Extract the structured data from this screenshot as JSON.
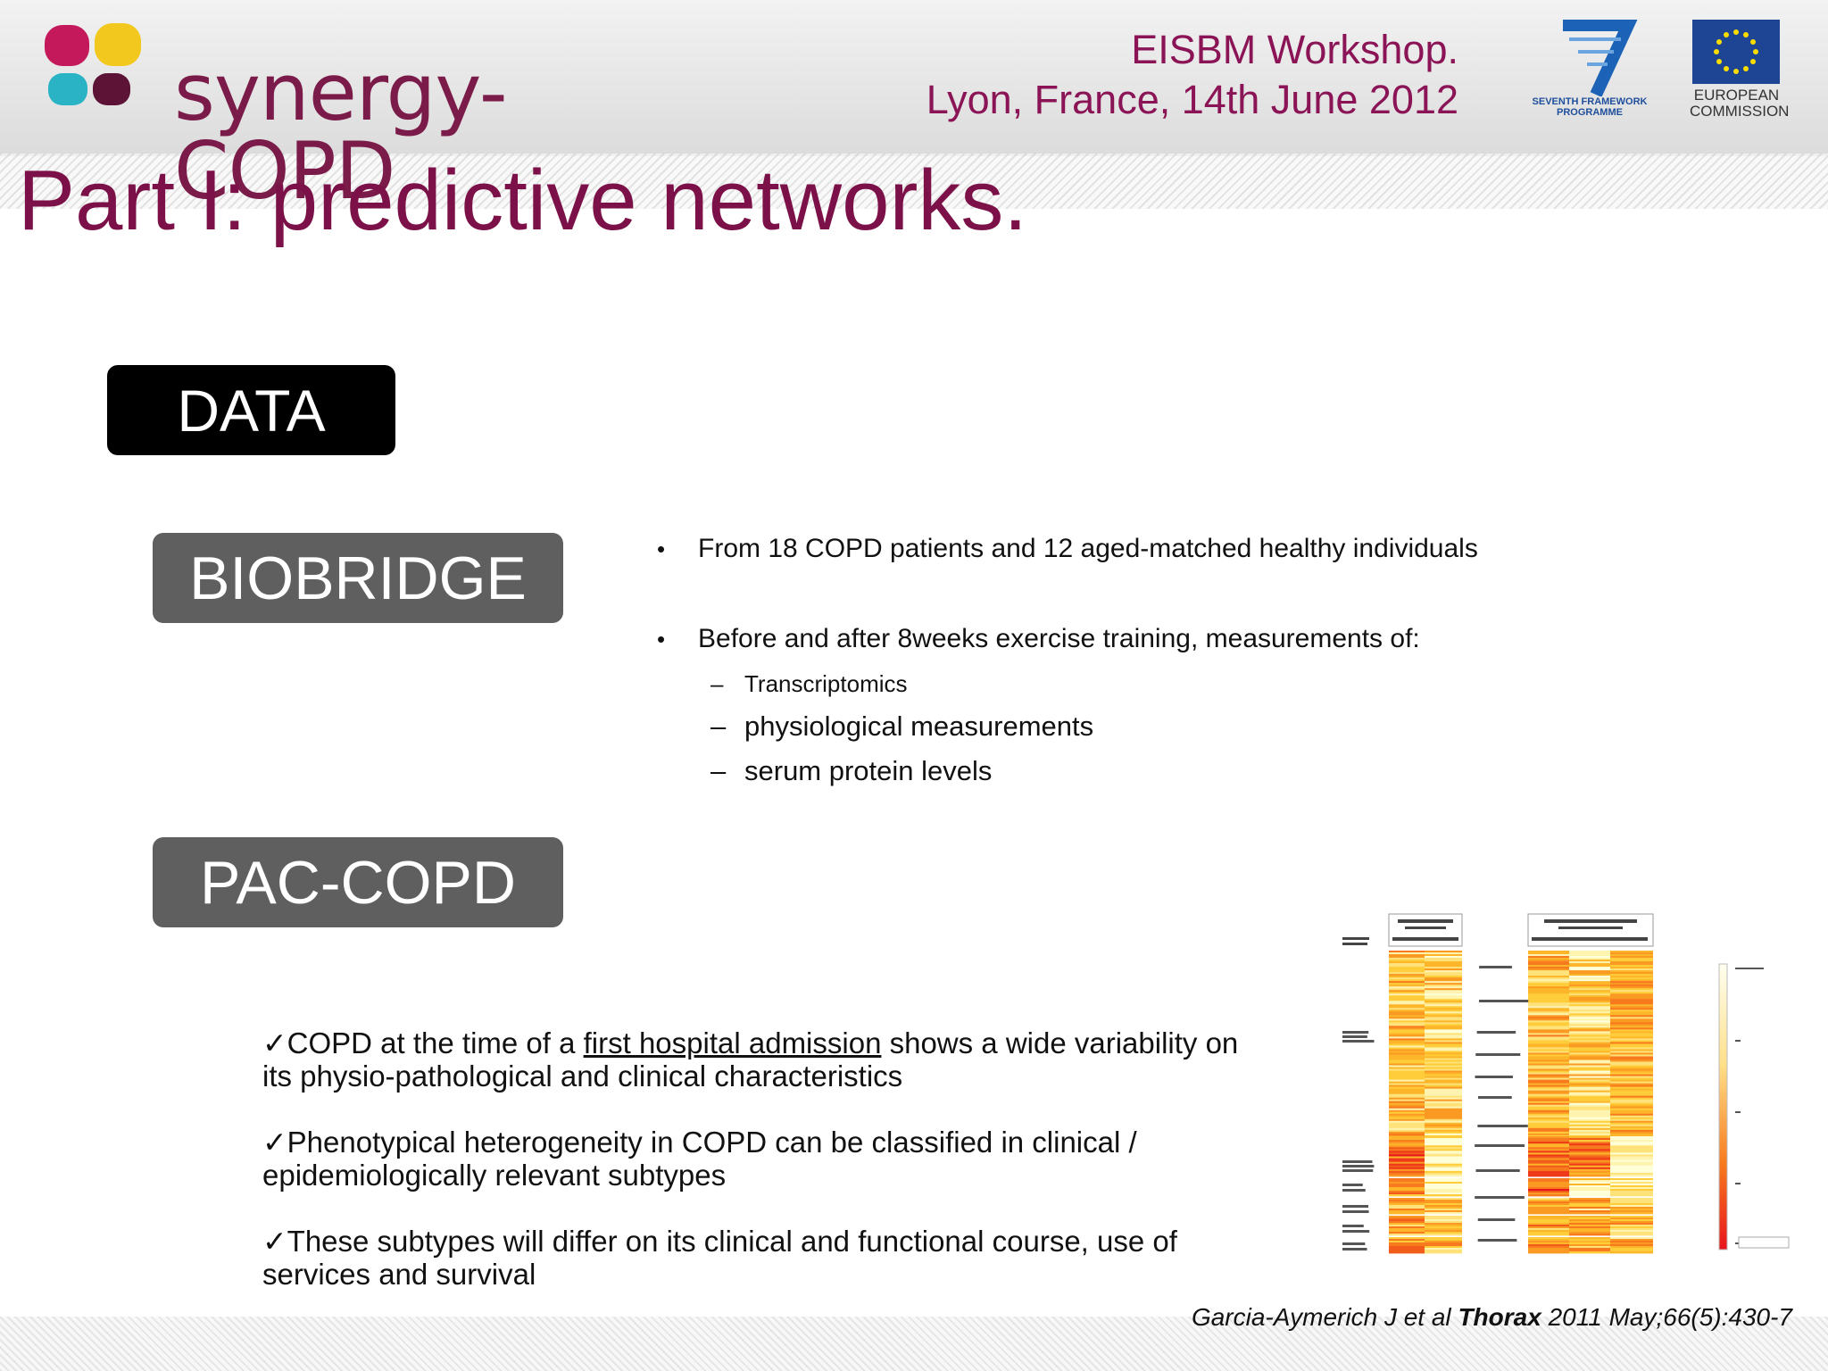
{
  "header": {
    "logo_text": "synergy-COPD",
    "event_line1": "EISBM Workshop.",
    "event_line2": "Lyon, France, 14th June 2012",
    "fp7_label_line1": "SEVENTH FRAMEWORK",
    "fp7_label_line2": "PROGRAMME",
    "eu_label_line1": "EUROPEAN",
    "eu_label_line2": "COMMISSION"
  },
  "slide": {
    "title": "Part I: predictive networks.",
    "badges": {
      "data": "DATA",
      "biobridge": "BIOBRIDGE",
      "pac_copd": "PAC-COPD"
    },
    "biobridge_bullets": {
      "bullet1": "From 18 COPD patients and 12 aged-matched healthy individuals",
      "bullet2": "Before and after 8weeks exercise training, measurements of:",
      "sub1": "Transcriptomics",
      "sub2": "physiological measurements",
      "sub3": "serum protein levels"
    },
    "pac_points": {
      "p1_pre": "COPD at the time of a ",
      "p1_link": "first hospital admission",
      "p1_post": " shows a wide variability on its physio-pathological and clinical characteristics",
      "p2": "Phenotypical heterogeneity in COPD  can be classified in clinical / epidemiologically relevant subtypes",
      "p3": "These subtypes will differ on its clinical and functional course, use of services and survival"
    },
    "citation": {
      "authors": "Garcia-Aymerich J et al ",
      "journal": "Thorax",
      "ref": " 2011 May;66(5):430-7"
    }
  },
  "colors": {
    "title": "#7b1148",
    "event": "#8a1456",
    "badge_dark": "#000000",
    "badge_gray": "#5f5f60",
    "heat_low": "#ffffc8",
    "heat_high": "#e8141c"
  }
}
